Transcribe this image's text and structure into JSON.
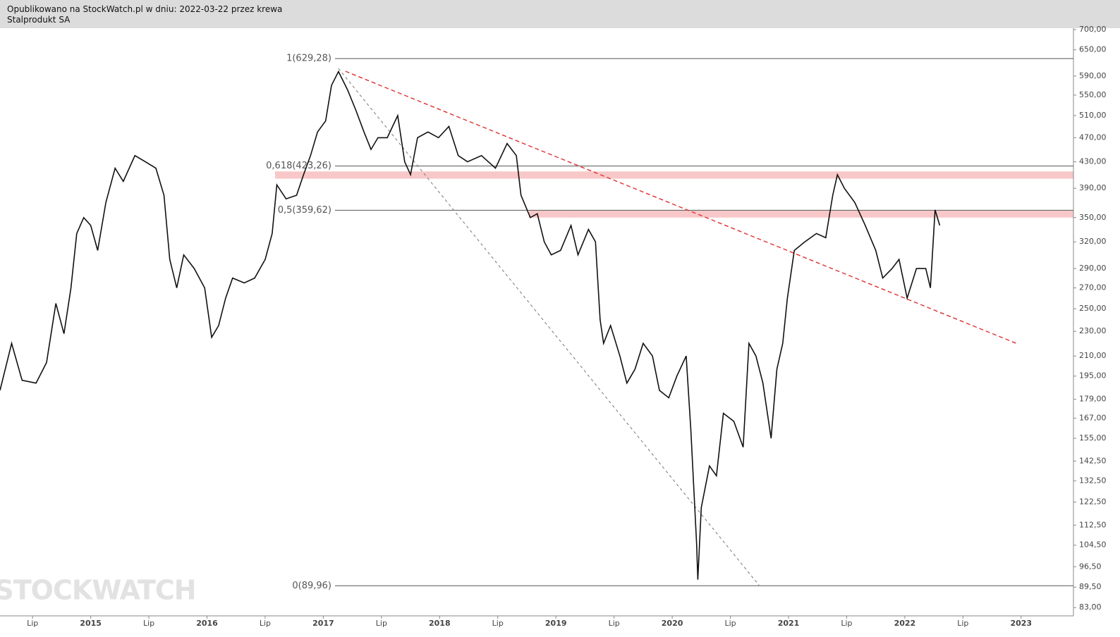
{
  "header": {
    "published": "Opublikowano na StockWatch.pl w dniu: 2022-03-22 przez krewa",
    "instrument": "Stalprodukt SA"
  },
  "chart_data": {
    "type": "line",
    "watermark": "STOCKWATCH",
    "log_scale": true,
    "xlim": [
      2014.22,
      2023.45
    ],
    "ylim": [
      80.5,
      704
    ],
    "xticks": [
      {
        "value": 2014.5,
        "label": "Lip"
      },
      2015,
      {
        "value": 2015.5,
        "label": "Lip"
      },
      2016,
      {
        "value": 2016.5,
        "label": "Lip"
      },
      2017,
      {
        "value": 2017.5,
        "label": "Lip"
      },
      2018,
      {
        "value": 2018.5,
        "label": "Lip"
      },
      2019,
      {
        "value": 2019.5,
        "label": "Lip"
      },
      2020,
      {
        "value": 2020.5,
        "label": "Lip"
      },
      2021,
      {
        "value": 2021.5,
        "label": "Lip"
      },
      2022,
      {
        "value": 2022.5,
        "label": "Lip"
      },
      2023
    ],
    "yticks": [
      {
        "value": 700,
        "label": "700,00"
      },
      {
        "value": 650,
        "label": "650,00"
      },
      {
        "value": 590,
        "label": "590,00"
      },
      {
        "value": 550,
        "label": "550,00"
      },
      {
        "value": 510,
        "label": "510,00"
      },
      {
        "value": 470,
        "label": "470,00"
      },
      {
        "value": 430,
        "label": "430,00"
      },
      {
        "value": 390,
        "label": "390,00"
      },
      {
        "value": 350,
        "label": "350,00"
      },
      {
        "value": 320,
        "label": "320,00"
      },
      {
        "value": 290,
        "label": "290,00"
      },
      {
        "value": 270,
        "label": "270,00"
      },
      {
        "value": 250,
        "label": "250,00"
      },
      {
        "value": 230,
        "label": "230,00"
      },
      {
        "value": 210,
        "label": "210,00"
      },
      {
        "value": 195,
        "label": "195,00"
      },
      {
        "value": 179,
        "label": "179,00"
      },
      {
        "value": 167,
        "label": "167,00"
      },
      {
        "value": 155,
        "label": "155,00"
      },
      {
        "value": 142.5,
        "label": "142,50"
      },
      {
        "value": 132.5,
        "label": "132,50"
      },
      {
        "value": 122.5,
        "label": "122,50"
      },
      {
        "value": 112.5,
        "label": "112,50"
      },
      {
        "value": 104.5,
        "label": "104,50"
      },
      {
        "value": 96.5,
        "label": "96,50"
      },
      {
        "value": 89.5,
        "label": "89,50"
      },
      {
        "value": 83,
        "label": "83,00"
      }
    ],
    "x": [
      2014.22,
      2014.32,
      2014.41,
      2014.53,
      2014.62,
      2014.7,
      2014.77,
      2014.83,
      2014.88,
      2014.94,
      2015.0,
      2015.06,
      2015.13,
      2015.21,
      2015.28,
      2015.38,
      2015.47,
      2015.56,
      2015.63,
      2015.68,
      2015.74,
      2015.8,
      2015.89,
      2015.98,
      2016.04,
      2016.1,
      2016.16,
      2016.22,
      2016.32,
      2016.41,
      2016.5,
      2016.56,
      2016.6,
      2016.68,
      2016.77,
      2016.83,
      2016.89,
      2016.95,
      2017.02,
      2017.07,
      2017.13,
      2017.21,
      2017.28,
      2017.35,
      2017.41,
      2017.47,
      2017.55,
      2017.64,
      2017.7,
      2017.75,
      2017.81,
      2017.9,
      2017.99,
      2018.08,
      2018.16,
      2018.24,
      2018.36,
      2018.48,
      2018.58,
      2018.66,
      2018.7,
      2018.78,
      2018.84,
      2018.9,
      2018.96,
      2019.04,
      2019.13,
      2019.19,
      2019.28,
      2019.34,
      2019.38,
      2019.41,
      2019.47,
      2019.55,
      2019.61,
      2019.68,
      2019.75,
      2019.83,
      2019.89,
      2019.97,
      2020.04,
      2020.12,
      2020.16,
      2020.21,
      2020.22,
      2020.25,
      2020.32,
      2020.38,
      2020.44,
      2020.53,
      2020.61,
      2020.66,
      2020.72,
      2020.78,
      2020.85,
      2020.9,
      2020.95,
      2020.99,
      2021.05,
      2021.14,
      2021.24,
      2021.32,
      2021.38,
      2021.42,
      2021.48,
      2021.57,
      2021.66,
      2021.75,
      2021.81,
      2021.89,
      2021.95,
      2022.02,
      2022.1,
      2022.18,
      2022.22,
      2022.26,
      2022.3
    ],
    "series": [
      {
        "color": "#111111",
        "values": [
          185,
          220,
          192,
          190,
          205,
          255,
          228,
          270,
          330,
          350,
          340,
          310,
          370,
          420,
          400,
          440,
          430,
          420,
          380,
          300,
          270,
          305,
          290,
          270,
          225,
          235,
          260,
          280,
          275,
          280,
          300,
          330,
          395,
          375,
          380,
          410,
          440,
          480,
          500,
          570,
          600,
          560,
          520,
          480,
          450,
          470,
          470,
          510,
          430,
          410,
          470,
          480,
          470,
          490,
          440,
          430,
          440,
          420,
          460,
          440,
          380,
          350,
          355,
          320,
          305,
          310,
          340,
          305,
          335,
          320,
          240,
          220,
          235,
          210,
          190,
          200,
          220,
          210,
          185,
          180,
          195,
          210,
          160,
          105,
          92,
          120,
          140,
          135,
          170,
          165,
          150,
          220,
          210,
          190,
          155,
          200,
          220,
          260,
          310,
          320,
          330,
          325,
          380,
          410,
          390,
          370,
          340,
          310,
          280,
          290,
          300,
          260,
          290,
          290,
          270,
          360,
          340
        ]
      }
    ],
    "fib_levels": [
      {
        "label": "1(629,28)",
        "value": 629.28
      },
      {
        "label": "0,618(423,26)",
        "value": 423.26
      },
      {
        "label": "0,5(359,62)",
        "value": 359.62
      },
      {
        "label": "0(89,96)",
        "value": 89.96
      }
    ],
    "zones": [
      {
        "from": 404,
        "to": 415,
        "color": "#f8c8c8"
      },
      {
        "from": 350,
        "to": 359,
        "color": "#f8c8c8"
      }
    ],
    "trendlines": [
      {
        "x": [
          2017.19,
          2022.97
        ],
        "values": [
          600.5,
          219.6
        ],
        "color": "#e03030"
      },
      {
        "x": [
          2017.13,
          2020.75
        ],
        "values": [
          606.8,
          89.96
        ],
        "color": "#777777"
      }
    ]
  }
}
